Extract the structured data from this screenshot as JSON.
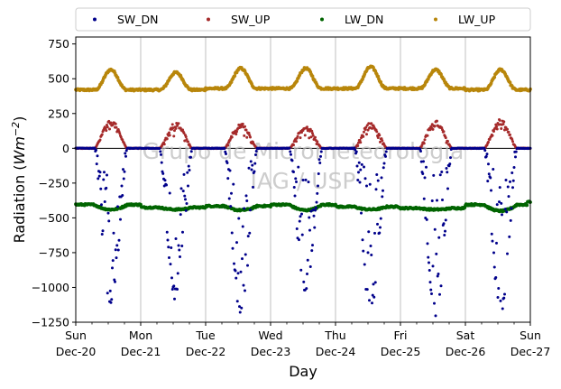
{
  "chart_data": {
    "type": "scatter",
    "title": "",
    "xlabel": "Day",
    "ylabel": "Radiation (Wm⁻²)",
    "ylabel_main": "Radiation (",
    "ylabel_unit": "Wm",
    "ylabel_exp": "−2",
    "ylabel_close": ")",
    "xlim": [
      0,
      7
    ],
    "ylim": [
      -1250,
      800
    ],
    "yticks": [
      800,
      -1250
    ],
    "ytick_values": [
      750,
      500,
      250,
      0,
      -250,
      -500,
      -750,
      -1000,
      -1250
    ],
    "ytick_labels": [
      "750",
      "500",
      "250",
      "0",
      "−250",
      "−500",
      "−750",
      "−1000",
      "−1250"
    ],
    "xticks": [
      {
        "day": "Sun",
        "date": "Dec-20"
      },
      {
        "day": "Mon",
        "date": "Dec-21"
      },
      {
        "day": "Tue",
        "date": "Dec-22"
      },
      {
        "day": "Wed",
        "date": "Dec-23"
      },
      {
        "day": "Thu",
        "date": "Dec-24"
      },
      {
        "day": "Fri",
        "date": "Dec-25"
      },
      {
        "day": "Sat",
        "date": "Dec-26"
      },
      {
        "day": "Sun",
        "date": "Dec-27"
      }
    ],
    "grid": "vertical",
    "legend_position": "top",
    "watermark": [
      "Grupo de Micrometeorologia",
      "IAG / USP"
    ],
    "series": [
      {
        "name": "SW_DN",
        "color": "#00008b",
        "daily_min": [
          -1130,
          -1120,
          -1190,
          -1090,
          -1180,
          -1210,
          -1190
        ],
        "peak_hour": 13.0
      },
      {
        "name": "SW_UP",
        "color": "#a52a2a",
        "daily_max": [
          205,
          190,
          185,
          160,
          185,
          200,
          210
        ],
        "peak_hour": 13.0
      },
      {
        "name": "LW_DN",
        "color": "#006400",
        "night_level": [
          -405,
          -425,
          -415,
          -405,
          -420,
          -430,
          -405
        ],
        "day_level": [
          -440,
          -440,
          -445,
          -445,
          -440,
          -440,
          -450
        ],
        "end_value": -385
      },
      {
        "name": "LW_UP",
        "color": "#b8860b",
        "night_level": [
          420,
          420,
          430,
          430,
          430,
          430,
          420
        ],
        "daily_max": [
          565,
          545,
          575,
          575,
          585,
          565,
          565
        ],
        "end_value": 425
      }
    ]
  }
}
